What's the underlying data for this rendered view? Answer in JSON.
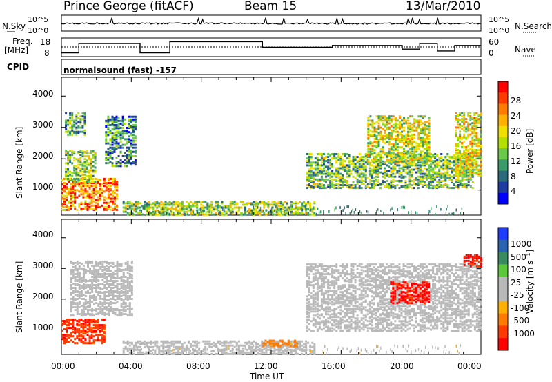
{
  "header": {
    "station": "Prince George (fitACF)",
    "beam": "Beam 15",
    "date": "13/Mar/2010"
  },
  "panels": {
    "nsky_label": "N.Sky",
    "nsky_ticks": [
      "10^5",
      "10^0"
    ],
    "nsearch_label": "N.Search",
    "nsearch_ticks": [
      "10^5",
      "10^0"
    ],
    "freq_label_1": "Freq.",
    "freq_label_2": "[MHz]",
    "freq_ticks": [
      "18",
      "8"
    ],
    "nave_label": "Nave",
    "nave_ticks": [
      "60",
      "0"
    ],
    "cpid_label": "CPID",
    "cpid_text": "normalsound (fast) -157"
  },
  "chart_data": [
    {
      "type": "heatmap",
      "name": "power",
      "ylabel": "Slant Range [km]",
      "yticks": [
        "4000",
        "3000",
        "2000",
        "1000"
      ],
      "ylim": [
        200,
        4600
      ],
      "colorbar": {
        "label": "Power [dB]",
        "ticks": [
          "28",
          "24",
          "20",
          "16",
          "12",
          "8",
          "4"
        ],
        "colors": [
          "#ff0000",
          "#ff3a00",
          "#ff7a00",
          "#ffb000",
          "#f0e000",
          "#b4e000",
          "#6ac84a",
          "#3a9a6a",
          "#2a6a7a",
          "#1e3ca0",
          "#0000ff"
        ]
      },
      "regions": [
        {
          "t0": 0.0,
          "t1": 3.2,
          "r0": 400,
          "r1": 1400,
          "level": 24
        },
        {
          "t0": 0.2,
          "t1": 2.0,
          "r0": 1300,
          "r1": 2300,
          "level": 14
        },
        {
          "t0": 2.5,
          "t1": 4.2,
          "r0": 1800,
          "r1": 3400,
          "level": 8
        },
        {
          "t0": 0.2,
          "t1": 1.4,
          "r0": 2800,
          "r1": 3500,
          "level": 10
        },
        {
          "t0": 3.5,
          "t1": 14.5,
          "r0": 250,
          "r1": 700,
          "level": 14
        },
        {
          "t0": 14.0,
          "t1": 23.5,
          "r0": 1100,
          "r1": 2200,
          "level": 12
        },
        {
          "t0": 17.5,
          "t1": 21.0,
          "r0": 1900,
          "r1": 3400,
          "level": 16
        },
        {
          "t0": 22.5,
          "t1": 24.0,
          "r0": 1500,
          "r1": 3500,
          "level": 18
        }
      ]
    },
    {
      "type": "heatmap",
      "name": "velocity",
      "ylabel": "Slant Range [km]",
      "yticks": [
        "4000",
        "3000",
        "2000",
        "1000"
      ],
      "ylim": [
        200,
        4600
      ],
      "colorbar": {
        "label": "Velocity [m s⁻¹]",
        "ticks": [
          "1000",
          "500",
          "100",
          "25",
          "-25",
          "-100",
          "-500",
          "-1000"
        ],
        "colors": [
          "#1e3cff",
          "#2a64b0",
          "#3a8a60",
          "#5ac83a",
          "#b9b9b9",
          "#b9b9b9",
          "#ffb000",
          "#ff7a00",
          "#ff3a00",
          "#ff0000"
        ]
      },
      "regions": [
        {
          "t0": 0.0,
          "t1": 2.5,
          "r0": 600,
          "r1": 1400,
          "level": -400
        },
        {
          "t0": 0.5,
          "t1": 4.0,
          "r0": 1500,
          "r1": 3300,
          "level": 0
        },
        {
          "t0": 3.5,
          "t1": 14.5,
          "r0": 250,
          "r1": 700,
          "level": 0
        },
        {
          "t0": 11.5,
          "t1": 13.5,
          "r0": 500,
          "r1": 700,
          "level": -150
        },
        {
          "t0": 14.0,
          "t1": 24.0,
          "r0": 1000,
          "r1": 3200,
          "level": 0
        },
        {
          "t0": 18.8,
          "t1": 21.0,
          "r0": 1900,
          "r1": 2600,
          "level": -600
        },
        {
          "t0": 23.0,
          "t1": 24.0,
          "r0": 3100,
          "r1": 3500,
          "level": -600
        }
      ]
    }
  ],
  "xaxis": {
    "label": "Time UT",
    "ticks": [
      "00:00",
      "04:00",
      "08:00",
      "12:00",
      "16:00",
      "20:00",
      "00:00"
    ],
    "range_hours": [
      0,
      24
    ]
  }
}
